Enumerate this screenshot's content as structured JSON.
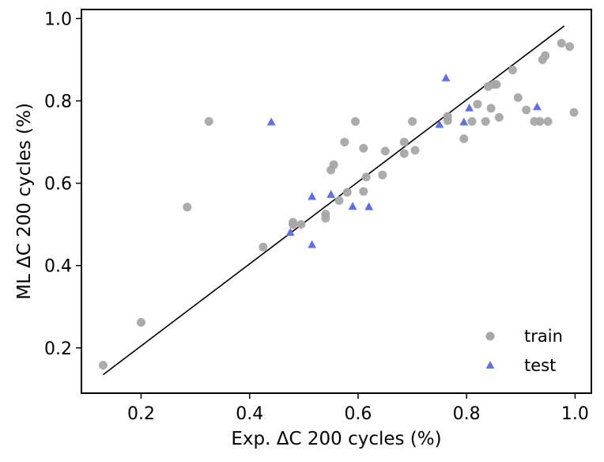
{
  "chart_data": {
    "type": "scatter",
    "xlabel": "Exp. ΔC 200 cycles (%)",
    "ylabel": "ML ΔC 200 cycles (%)",
    "xlim": [
      0.09,
      1.03
    ],
    "ylim": [
      0.09,
      1.022
    ],
    "xticks": [
      0.2,
      0.4,
      0.6,
      0.8,
      1.0
    ],
    "yticks": [
      0.2,
      0.4,
      0.6,
      0.8,
      1.0
    ],
    "xtick_labels": [
      "0.2",
      "0.4",
      "0.6",
      "0.8",
      "1.0"
    ],
    "ytick_labels": [
      "0.2",
      "0.4",
      "0.6",
      "0.8",
      "1.0"
    ],
    "grid": false,
    "legend_position": "bottom-right",
    "fit_line": {
      "x": [
        0.13,
        0.98
      ],
      "y": [
        0.135,
        0.982
      ],
      "color": "#000000"
    },
    "series": [
      {
        "name": "train",
        "marker": "circle",
        "color": "#a6a6a6",
        "points": [
          [
            0.13,
            0.158
          ],
          [
            0.2,
            0.262
          ],
          [
            0.285,
            0.542
          ],
          [
            0.325,
            0.75
          ],
          [
            0.425,
            0.445
          ],
          [
            0.48,
            0.5
          ],
          [
            0.48,
            0.505
          ],
          [
            0.495,
            0.5
          ],
          [
            0.54,
            0.515
          ],
          [
            0.54,
            0.525
          ],
          [
            0.55,
            0.632
          ],
          [
            0.555,
            0.645
          ],
          [
            0.565,
            0.558
          ],
          [
            0.575,
            0.7
          ],
          [
            0.58,
            0.578
          ],
          [
            0.595,
            0.75
          ],
          [
            0.61,
            0.685
          ],
          [
            0.61,
            0.58
          ],
          [
            0.615,
            0.615
          ],
          [
            0.645,
            0.62
          ],
          [
            0.65,
            0.678
          ],
          [
            0.685,
            0.7
          ],
          [
            0.685,
            0.672
          ],
          [
            0.7,
            0.75
          ],
          [
            0.705,
            0.68
          ],
          [
            0.765,
            0.752
          ],
          [
            0.765,
            0.762
          ],
          [
            0.795,
            0.708
          ],
          [
            0.81,
            0.75
          ],
          [
            0.82,
            0.792
          ],
          [
            0.835,
            0.75
          ],
          [
            0.84,
            0.835
          ],
          [
            0.845,
            0.782
          ],
          [
            0.85,
            0.84
          ],
          [
            0.855,
            0.84
          ],
          [
            0.86,
            0.76
          ],
          [
            0.885,
            0.875
          ],
          [
            0.895,
            0.808
          ],
          [
            0.91,
            0.778
          ],
          [
            0.925,
            0.75
          ],
          [
            0.935,
            0.75
          ],
          [
            0.94,
            0.9
          ],
          [
            0.945,
            0.91
          ],
          [
            0.95,
            0.75
          ],
          [
            0.975,
            0.94
          ],
          [
            0.99,
            0.932
          ],
          [
            0.998,
            0.772
          ]
        ]
      },
      {
        "name": "test",
        "marker": "triangle",
        "color": "#5b6ff0",
        "points": [
          [
            0.44,
            0.748
          ],
          [
            0.475,
            0.48
          ],
          [
            0.515,
            0.45
          ],
          [
            0.515,
            0.567
          ],
          [
            0.55,
            0.572
          ],
          [
            0.59,
            0.543
          ],
          [
            0.62,
            0.542
          ],
          [
            0.75,
            0.742
          ],
          [
            0.762,
            0.855
          ],
          [
            0.795,
            0.748
          ],
          [
            0.805,
            0.782
          ],
          [
            0.93,
            0.785
          ]
        ]
      }
    ]
  }
}
